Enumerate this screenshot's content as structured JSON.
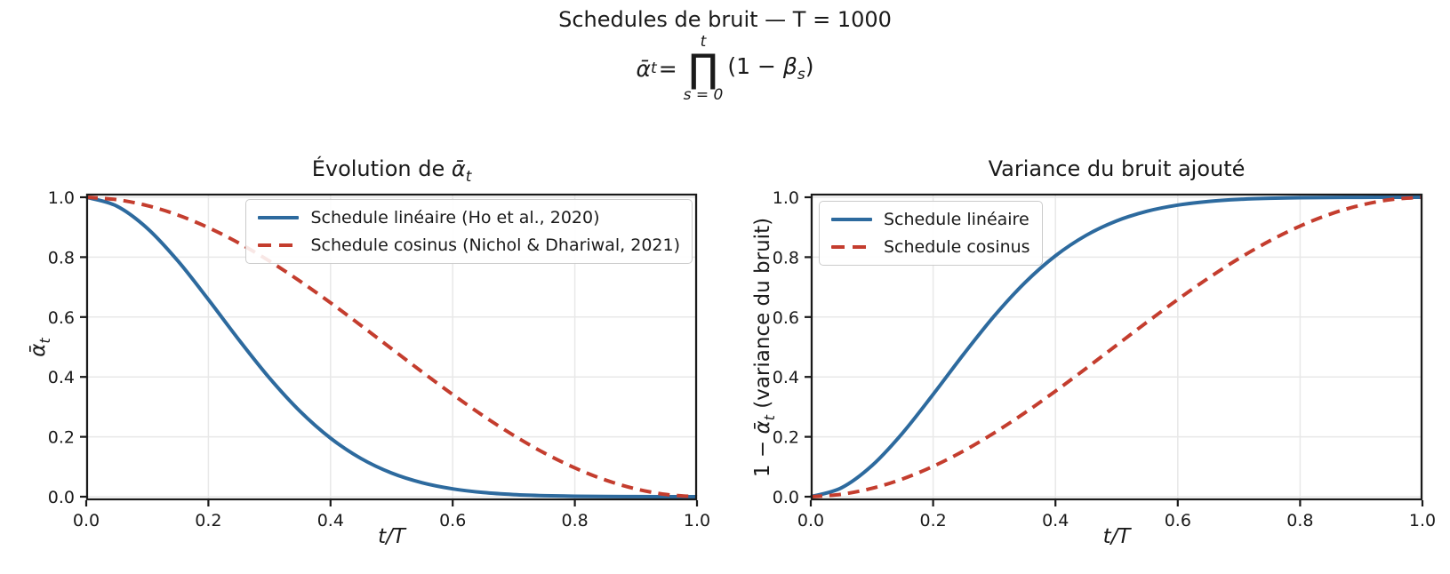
{
  "header": {
    "suptitle": "Schedules de bruit — T = 1000",
    "formula": {
      "lhs_math": "ᾱ",
      "lhs_sub": "t",
      "lhs_eq": " = ",
      "upper": "t",
      "prod": "∏",
      "lower": "s = 0",
      "rhs_pre": "(1 − ",
      "rhs_beta": "β",
      "rhs_sub": "s",
      "rhs_post": ")"
    }
  },
  "palette": {
    "blue": "#2d6a9e",
    "red": "#c43d2e",
    "grid": "#e8e8e8",
    "axis": "#1a1a1a",
    "legend_border": "#cbcbcb"
  },
  "chart_data": [
    {
      "type": "line",
      "title": "Évolution de ᾱₜ",
      "title_parts": {
        "pre": "Évolution de ",
        "math": "ᾱ",
        "sub": "t"
      },
      "xlabel": "t/T",
      "ylabel": "ᾱₜ",
      "ylabel_parts": {
        "pre": "",
        "math": "ᾱ",
        "sub": "t",
        "post": ""
      },
      "xlim": [
        0.0,
        1.0
      ],
      "ylim": [
        0.0,
        1.0
      ],
      "grid": true,
      "legend_position": "upper right",
      "xticks": [
        0.0,
        0.2,
        0.4,
        0.6,
        0.8,
        1.0
      ],
      "xtick_labels": [
        "0.0",
        "0.2",
        "0.4",
        "0.6",
        "0.8",
        "1.0"
      ],
      "yticks": [
        0.0,
        0.2,
        0.4,
        0.6,
        0.8,
        1.0
      ],
      "ytick_labels": [
        "0.0",
        "0.2",
        "0.4",
        "0.6",
        "0.8",
        "1.0"
      ],
      "x": [
        0.0,
        0.05,
        0.1,
        0.15,
        0.2,
        0.25,
        0.3,
        0.35,
        0.4,
        0.45,
        0.5,
        0.55,
        0.6,
        0.65,
        0.7,
        0.75,
        0.8,
        0.85,
        0.9,
        0.95,
        1.0
      ],
      "series": [
        {
          "name": "Schedule linéaire (Ho et al., 2020)",
          "color": "#2d6a9e",
          "dash": false,
          "values": [
            1.0,
            0.9706,
            0.8963,
            0.7875,
            0.6584,
            0.5237,
            0.3963,
            0.2854,
            0.1955,
            0.1274,
            0.079,
            0.0466,
            0.0262,
            0.014,
            0.0071,
            0.0034,
            0.0016,
            0.0007,
            0.0003,
            0.0001,
            0.0
          ]
        },
        {
          "name": "Schedule cosinus (Nichol & Dhariwal, 2021)",
          "color": "#c43d2e",
          "dash": true,
          "values": [
            1.0,
            0.992,
            0.9721,
            0.9407,
            0.8986,
            0.847,
            0.7868,
            0.7198,
            0.6475,
            0.5716,
            0.494,
            0.4166,
            0.3414,
            0.2701,
            0.2045,
            0.146,
            0.0961,
            0.0558,
            0.026,
            0.0073,
            0.0
          ]
        }
      ]
    },
    {
      "type": "line",
      "title": "Variance du bruit ajouté",
      "title_parts": {
        "pre": "Variance du bruit ajouté",
        "math": "",
        "sub": ""
      },
      "xlabel": "t/T",
      "ylabel": "1 − ᾱₜ (variance du bruit)",
      "ylabel_parts": {
        "pre": "1 − ",
        "math": "ᾱ",
        "sub": "t",
        "post": "  (variance du bruit)"
      },
      "xlim": [
        0.0,
        1.0
      ],
      "ylim": [
        0.0,
        1.0
      ],
      "grid": true,
      "legend_position": "upper left",
      "xticks": [
        0.0,
        0.2,
        0.4,
        0.6,
        0.8,
        1.0
      ],
      "xtick_labels": [
        "0.0",
        "0.2",
        "0.4",
        "0.6",
        "0.8",
        "1.0"
      ],
      "yticks": [
        0.0,
        0.2,
        0.4,
        0.6,
        0.8,
        1.0
      ],
      "ytick_labels": [
        "0.0",
        "0.2",
        "0.4",
        "0.6",
        "0.8",
        "1.0"
      ],
      "x": [
        0.0,
        0.05,
        0.1,
        0.15,
        0.2,
        0.25,
        0.3,
        0.35,
        0.4,
        0.45,
        0.5,
        0.55,
        0.6,
        0.65,
        0.7,
        0.75,
        0.8,
        0.85,
        0.9,
        0.95,
        1.0
      ],
      "series": [
        {
          "name": "Schedule linéaire",
          "color": "#2d6a9e",
          "dash": false,
          "values": [
            0.0,
            0.0294,
            0.1037,
            0.2125,
            0.3416,
            0.4763,
            0.6037,
            0.7146,
            0.8045,
            0.8726,
            0.921,
            0.9534,
            0.9738,
            0.986,
            0.9929,
            0.9966,
            0.9984,
            0.9993,
            0.9997,
            0.9999,
            1.0
          ]
        },
        {
          "name": "Schedule cosinus",
          "color": "#c43d2e",
          "dash": true,
          "values": [
            0.0,
            0.008,
            0.0279,
            0.0593,
            0.1014,
            0.153,
            0.2132,
            0.2802,
            0.3525,
            0.4284,
            0.506,
            0.5834,
            0.6586,
            0.7299,
            0.7955,
            0.854,
            0.9039,
            0.9442,
            0.974,
            0.9927,
            1.0
          ]
        }
      ]
    }
  ]
}
